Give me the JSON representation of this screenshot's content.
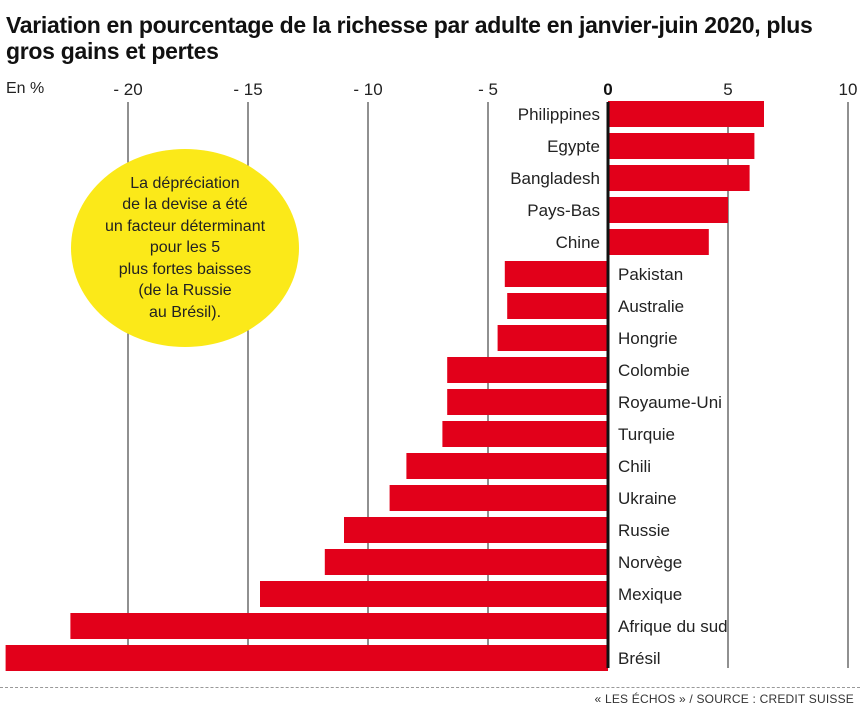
{
  "title": "Variation en pourcentage de la richesse par adulte en janvier-juin 2020, plus gros gains et pertes",
  "unit_label": "En %",
  "callout": "La dépréciation\nde la devise a été\nun facteur déterminant\npour les 5\nplus fortes baisses\n(de la Russie\nau Brésil).",
  "source": "« LES ÉCHOS » / SOURCE : CREDIT SUISSE",
  "colors": {
    "bar": "#e2001a",
    "callout": "#fbe919",
    "axis": "#222222"
  },
  "chart_data": {
    "type": "bar",
    "orientation": "horizontal",
    "categories": [
      "Philippines",
      "Egypte",
      "Bangladesh",
      "Pays-Bas",
      "Chine",
      "Pakistan",
      "Australie",
      "Hongrie",
      "Colombie",
      "Royaume-Uni",
      "Turquie",
      "Chili",
      "Ukraine",
      "Russie",
      "Norvège",
      "Mexique",
      "Afrique du sud",
      "Brésil"
    ],
    "values": [
      6.5,
      6.1,
      5.9,
      5.0,
      4.2,
      -4.3,
      -4.2,
      -4.6,
      -6.7,
      -6.7,
      -6.9,
      -8.4,
      -9.1,
      -11.0,
      -11.8,
      -14.5,
      -22.4,
      -25.1
    ],
    "xlim": [
      -25,
      10
    ],
    "ticks": [
      {
        "value": -20,
        "label": "- 20"
      },
      {
        "value": -15,
        "label": "- 15"
      },
      {
        "value": -10,
        "label": "- 10"
      },
      {
        "value": -5,
        "label": "- 5"
      },
      {
        "value": 0,
        "label": "0"
      },
      {
        "value": 5,
        "label": "5"
      },
      {
        "value": 10,
        "label": "10"
      }
    ],
    "grid": true
  }
}
